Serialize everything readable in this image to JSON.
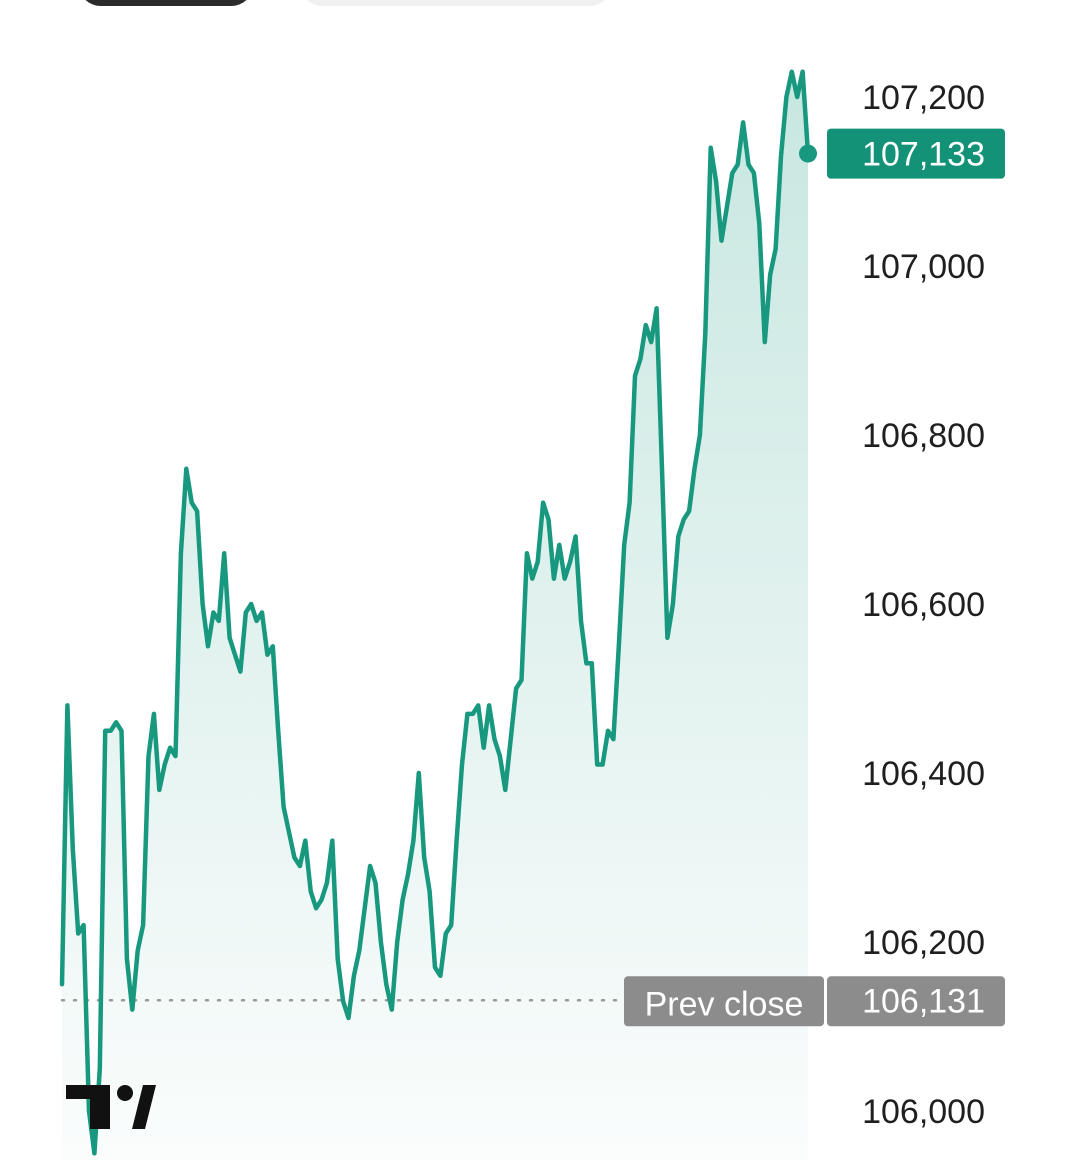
{
  "header": {
    "tabs": [
      "",
      ""
    ]
  },
  "logo": {
    "name": "tradingview-logo"
  },
  "chart_data": {
    "type": "area",
    "ylim": [
      105940,
      107250
    ],
    "y_ticks": [
      107200,
      107000,
      106800,
      106600,
      106400,
      106200,
      106000
    ],
    "y_tick_labels": [
      "107,200",
      "107,000",
      "106,800",
      "106,600",
      "106,400",
      "106,200",
      "106,000"
    ],
    "current_value": 107133,
    "current_label": "107,133",
    "prev_close_value": 106131,
    "prev_close_text": "Prev close",
    "prev_close_label": "106,131",
    "colors": {
      "line": "#18987e",
      "fill": "#18987e",
      "badge_current": "#149277",
      "badge_prev": "#8c8c8c",
      "prev_line": "#9a9a9a"
    },
    "values": [
      106150,
      106480,
      106310,
      106210,
      106220,
      106000,
      105950,
      106050,
      106450,
      106450,
      106460,
      106450,
      106180,
      106120,
      106190,
      106220,
      106420,
      106470,
      106380,
      106410,
      106430,
      106420,
      106660,
      106760,
      106720,
      106710,
      106600,
      106550,
      106590,
      106580,
      106660,
      106560,
      106540,
      106520,
      106590,
      106600,
      106580,
      106590,
      106540,
      106550,
      106450,
      106360,
      106330,
      106300,
      106290,
      106320,
      106260,
      106240,
      106250,
      106270,
      106320,
      106180,
      106130,
      106110,
      106160,
      106190,
      106240,
      106290,
      106270,
      106200,
      106150,
      106120,
      106200,
      106250,
      106280,
      106320,
      106400,
      106300,
      106260,
      106170,
      106160,
      106210,
      106220,
      106320,
      106410,
      106470,
      106470,
      106480,
      106430,
      106480,
      106440,
      106420,
      106380,
      106440,
      106500,
      106510,
      106660,
      106630,
      106650,
      106720,
      106700,
      106630,
      106670,
      106630,
      106650,
      106680,
      106580,
      106530,
      106530,
      106410,
      106410,
      106450,
      106440,
      106550,
      106670,
      106720,
      106870,
      106890,
      106930,
      106910,
      106950,
      106760,
      106560,
      106600,
      106680,
      106700,
      106710,
      106760,
      106800,
      106920,
      107140,
      107100,
      107030,
      107070,
      107110,
      107120,
      107170,
      107120,
      107110,
      107050,
      106910,
      106990,
      107020,
      107130,
      107200,
      107230,
      107200,
      107230,
      107133
    ]
  }
}
